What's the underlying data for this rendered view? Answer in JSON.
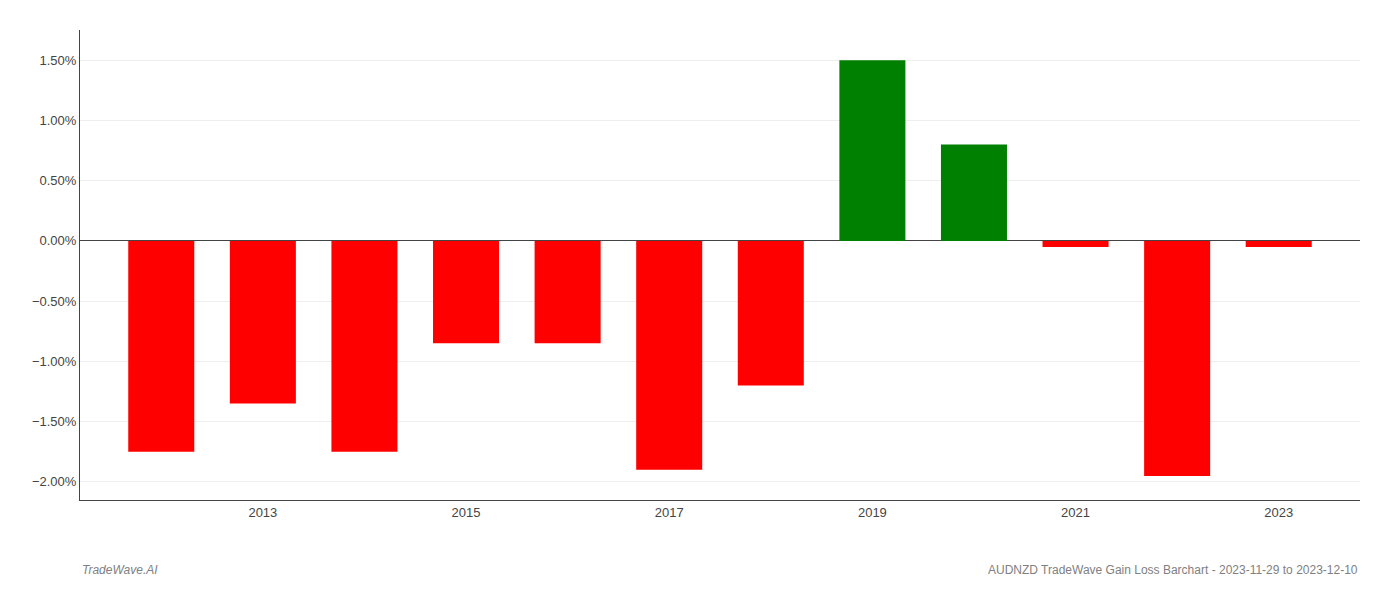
{
  "chart_data": {
    "type": "bar",
    "x": [
      2012,
      2013,
      2014,
      2015,
      2016,
      2017,
      2018,
      2019,
      2020,
      2021,
      2022,
      2023
    ],
    "values": [
      -1.75,
      -1.35,
      -1.75,
      -0.85,
      -0.85,
      -1.9,
      -1.2,
      1.5,
      0.8,
      -0.05,
      -1.95,
      -0.05
    ],
    "colors": [
      "#FF0000",
      "#FF0000",
      "#FF0000",
      "#FF0000",
      "#FF0000",
      "#FF0000",
      "#FF0000",
      "#008000",
      "#008000",
      "#FF0000",
      "#FF0000",
      "#FF0000"
    ],
    "xlim": [
      2011.2,
      2023.8
    ],
    "xticks": [
      2013,
      2015,
      2017,
      2019,
      2021,
      2023
    ],
    "ylim": [
      -2.15,
      1.75
    ],
    "yticks": [
      {
        "value": -2.0,
        "label": "−2.00%"
      },
      {
        "value": -1.5,
        "label": "−1.50%"
      },
      {
        "value": -1.0,
        "label": "−1.00%"
      },
      {
        "value": -0.5,
        "label": "−0.50%"
      },
      {
        "value": 0.0,
        "label": "0.00%"
      },
      {
        "value": 0.5,
        "label": "0.50%"
      },
      {
        "value": 1.0,
        "label": "1.00%"
      },
      {
        "value": 1.5,
        "label": "1.50%"
      }
    ],
    "grid": true,
    "annotations": [
      "TradeWave.AI",
      "AUDNZD TradeWave Gain Loss Barchart - 2023-11-29 to 2023-12-10"
    ]
  }
}
